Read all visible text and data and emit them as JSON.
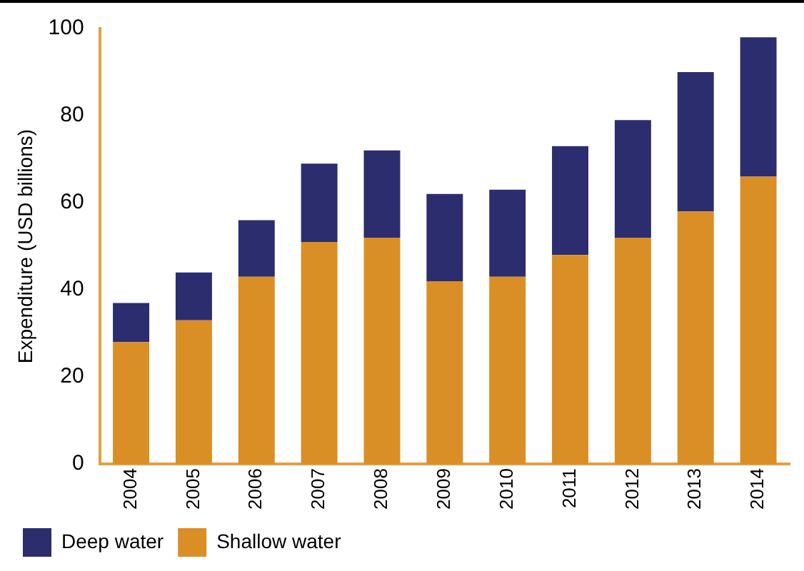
{
  "chart_data": {
    "type": "bar",
    "stacked": true,
    "ylabel": "Expenditure (USD billions)",
    "categories": [
      "2004",
      "2005",
      "2006",
      "2007",
      "2008",
      "2009",
      "2010",
      "2011",
      "2012",
      "2013",
      "2014"
    ],
    "series": [
      {
        "name": "Shallow water",
        "color": "#d98f25",
        "values": [
          28,
          33,
          43,
          51,
          52,
          42,
          43,
          48,
          52,
          58,
          66
        ]
      },
      {
        "name": "Deep water",
        "color": "#2b2d6e",
        "values": [
          9,
          11,
          13,
          18,
          20,
          20,
          20,
          25,
          27,
          32,
          32
        ]
      }
    ],
    "ylim": [
      0,
      100
    ],
    "yticks": [
      0,
      20,
      40,
      60,
      80,
      100
    ],
    "grid": false,
    "legend": "bottom left"
  }
}
